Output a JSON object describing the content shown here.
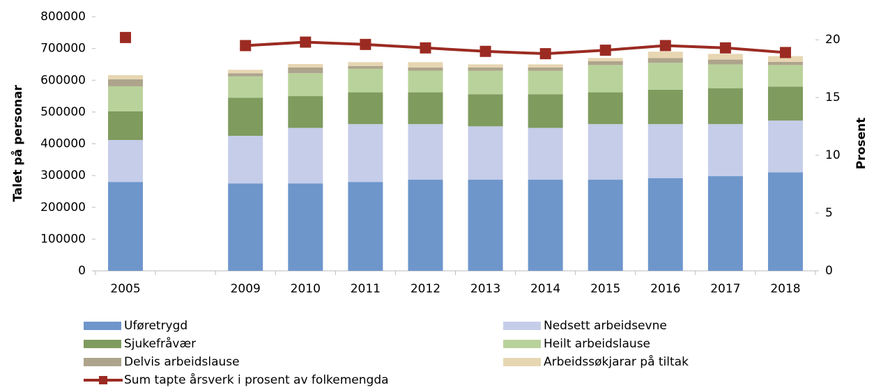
{
  "chart_data": {
    "type": "bar",
    "stacked": true,
    "ylabel": "Talet på personar",
    "y2label": "Prosent",
    "categories": [
      "2005",
      null,
      "2009",
      "2010",
      "2011",
      "2012",
      "2013",
      "2014",
      "2015",
      "2016",
      "2017",
      "2018"
    ],
    "ylim": [
      0,
      800000
    ],
    "yticks": [
      0,
      100000,
      200000,
      300000,
      400000,
      500000,
      600000,
      700000,
      800000
    ],
    "y2lim": [
      0,
      22
    ],
    "y2ticks": [
      0,
      5,
      10,
      15,
      20
    ],
    "grid": false,
    "series": [
      {
        "name": "Uføretrygd",
        "color": "#6e96cb",
        "values": [
          280000,
          null,
          275000,
          275000,
          280000,
          287000,
          287000,
          287000,
          287000,
          292000,
          298000,
          310000
        ]
      },
      {
        "name": "Nedsett arbeidsevne",
        "color": "#c5cde9",
        "values": [
          132000,
          null,
          150000,
          175000,
          182000,
          175000,
          168000,
          163000,
          175000,
          170000,
          164000,
          163000
        ]
      },
      {
        "name": "Sjukefråvær",
        "color": "#7f9b5e",
        "values": [
          90000,
          null,
          120000,
          100000,
          100000,
          100000,
          101000,
          106000,
          100000,
          108000,
          113000,
          107000
        ]
      },
      {
        "name": "Heilt arbeidslause",
        "color": "#b9d29b",
        "values": [
          79000,
          null,
          67000,
          72000,
          74000,
          68000,
          74000,
          74000,
          86000,
          85000,
          75000,
          68000
        ]
      },
      {
        "name": "Delvis arbeidslause",
        "color": "#aea48c",
        "values": [
          22000,
          null,
          10000,
          18000,
          9000,
          10000,
          10000,
          10000,
          12000,
          15000,
          15000,
          10000
        ]
      },
      {
        "name": "Arbeidssøkjarar på tiltak",
        "color": "#e7d6b2",
        "values": [
          13000,
          null,
          11000,
          11000,
          12000,
          17000,
          10000,
          10000,
          10000,
          20000,
          18000,
          18000
        ]
      },
      {
        "name": "Sum tapte årsverk i prosent av folkemengda",
        "type": "line",
        "axis": "y2",
        "color": "#9b2b22",
        "values": [
          20.2,
          null,
          19.5,
          19.8,
          19.6,
          19.3,
          19.0,
          18.8,
          19.1,
          19.5,
          19.3,
          18.9
        ]
      }
    ]
  }
}
